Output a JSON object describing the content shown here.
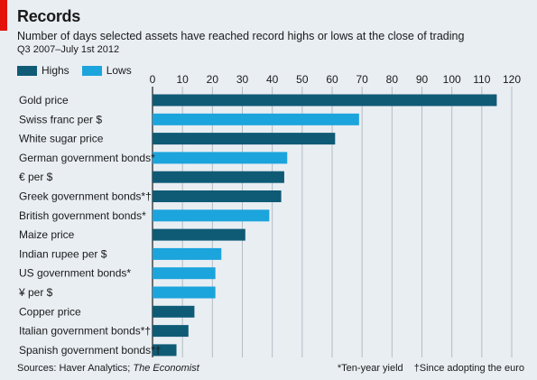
{
  "header": {
    "title": "Records",
    "subtitle": "Number of days selected assets have reached record highs or lows at the close of trading",
    "period": "Q3 2007–July 1st 2012"
  },
  "legend": [
    {
      "label": "Highs",
      "color": "#0f5b76"
    },
    {
      "label": "Lows",
      "color": "#1ca4dc"
    }
  ],
  "footer": {
    "source_prefix": "Sources: Haver Analytics; ",
    "source_italic": "The Economist",
    "note_1": "*Ten-year yield",
    "note_2": "†Since adopting the euro"
  },
  "colors": {
    "highs": "#0f5b76",
    "lows": "#1ca4dc",
    "background": "#e9eef3",
    "gridline": "#b3bcc5",
    "accent": "#e3120b"
  },
  "chart_data": {
    "type": "bar",
    "orientation": "horizontal",
    "xlim": [
      0,
      120
    ],
    "ticks": [
      0,
      10,
      20,
      30,
      40,
      50,
      60,
      70,
      80,
      90,
      100,
      110,
      120
    ],
    "grid": true,
    "legend_position": "top-left",
    "categories": [
      "Gold price",
      "Swiss franc per $",
      "White sugar price",
      "German government bonds*",
      "€ per $",
      "Greek government bonds*†",
      "British government bonds*",
      "Maize price",
      "Indian rupee per $",
      "US government bonds*",
      "¥ per $",
      "Copper price",
      "Italian government bonds*†",
      "Spanish government bonds*†"
    ],
    "values": [
      115,
      69,
      61,
      45,
      44,
      43,
      39,
      31,
      23,
      21,
      21,
      14,
      12,
      8
    ],
    "series_type": [
      "Highs",
      "Lows",
      "Highs",
      "Lows",
      "Highs",
      "Highs",
      "Lows",
      "Highs",
      "Lows",
      "Lows",
      "Lows",
      "Highs",
      "Highs",
      "Highs"
    ]
  }
}
